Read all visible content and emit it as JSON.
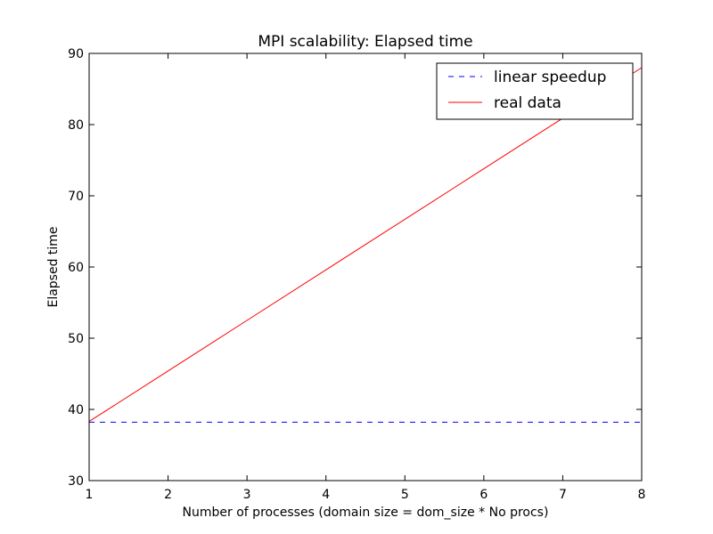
{
  "chart_data": {
    "type": "line",
    "title": "MPI scalability: Elapsed time",
    "xlabel": "Number of processes (domain size = dom_size * No procs)",
    "ylabel": "Elapsed time",
    "xlim": [
      1,
      8
    ],
    "ylim": [
      30,
      90
    ],
    "xticks": [
      1,
      2,
      3,
      4,
      5,
      6,
      7,
      8
    ],
    "yticks": [
      30,
      40,
      50,
      60,
      70,
      80,
      90
    ],
    "grid": false,
    "legend_position": "top-right",
    "series": [
      {
        "name": "linear speedup",
        "color": "#0000ff",
        "style": "dashed",
        "x": [
          1,
          2,
          3,
          4,
          5,
          6,
          7,
          8
        ],
        "y": [
          38.2,
          38.2,
          38.2,
          38.2,
          38.2,
          38.2,
          38.2,
          38.2
        ]
      },
      {
        "name": "real data",
        "color": "#ff0000",
        "style": "solid",
        "x": [
          1,
          2,
          3,
          4,
          5,
          6,
          7,
          8
        ],
        "y": [
          38.3,
          45.4,
          52.5,
          59.6,
          66.7,
          73.8,
          80.9,
          88.0
        ]
      }
    ]
  }
}
